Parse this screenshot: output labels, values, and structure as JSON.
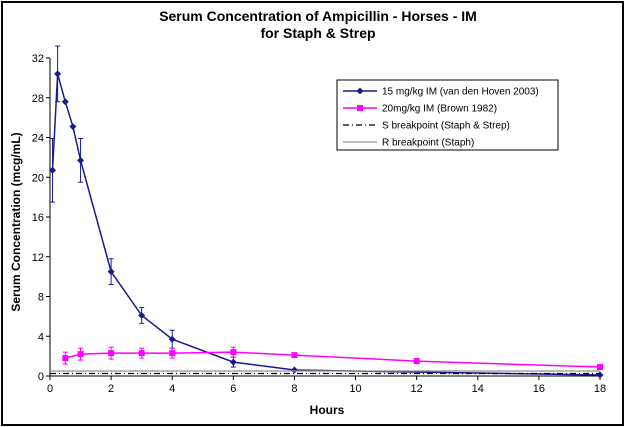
{
  "chart_data": {
    "type": "line",
    "title": "Serum Concentration of Ampicillin  - Horses - IM",
    "subtitle": "for Staph & Strep",
    "xlabel": "Hours",
    "ylabel": "Serum Concentration (mcg/mL)",
    "xlim": [
      0,
      18
    ],
    "ylim": [
      0,
      32
    ],
    "xticks": [
      "0",
      "2",
      "4",
      "6",
      "8",
      "10",
      "12",
      "14",
      "16",
      "18"
    ],
    "yticks": [
      "0",
      "4",
      "8",
      "12",
      "16",
      "20",
      "24",
      "28",
      "32"
    ],
    "grid": false,
    "legend_position": "top-right",
    "series": [
      {
        "name": "15 mg/kg IM (van den Hoven 2003)",
        "color": "#1a1a8c",
        "marker": "diamond",
        "x": [
          0.083,
          0.25,
          0.5,
          0.75,
          1,
          2,
          3,
          4,
          6,
          8,
          18
        ],
        "y": [
          20.7,
          30.4,
          27.6,
          25.1,
          21.7,
          10.5,
          6.1,
          3.7,
          1.4,
          0.6,
          0.1
        ],
        "err": [
          3.2,
          2.8,
          0,
          0,
          2.2,
          1.3,
          0.8,
          0.9,
          0.5,
          0,
          0
        ]
      },
      {
        "name": "20mg/kg IM (Brown 1982)",
        "color": "#ff00ff",
        "marker": "square",
        "x": [
          0.5,
          1,
          2,
          3,
          4,
          6,
          8,
          12,
          18
        ],
        "y": [
          1.8,
          2.2,
          2.3,
          2.3,
          2.3,
          2.4,
          2.1,
          1.5,
          0.9
        ],
        "err": [
          0.6,
          0.6,
          0.6,
          0.5,
          0.5,
          0.5,
          0,
          0,
          0
        ]
      },
      {
        "name": "S breakpoint (Staph & Strep)",
        "color": "#000000",
        "dash": "dash-dot",
        "x": [
          0,
          18
        ],
        "y": [
          0.25,
          0.25
        ]
      },
      {
        "name": "R breakpoint (Staph)",
        "color": "#909090",
        "x": [
          0,
          18
        ],
        "y": [
          0.5,
          0.5
        ]
      }
    ]
  }
}
